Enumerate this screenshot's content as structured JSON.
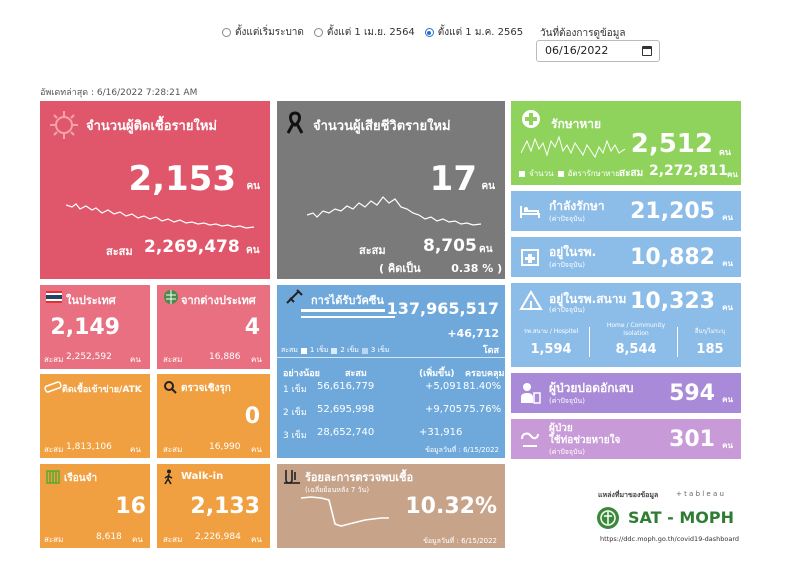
{
  "filters": {
    "options": [
      {
        "label": "ตั้งแต่เริ่มระบาด",
        "selected": false
      },
      {
        "label": "ตั้งแต่ 1 เม.ย. 2564",
        "selected": false
      },
      {
        "label": "ตั้งแต่ 1 ม.ค. 2565",
        "selected": true
      }
    ],
    "date_label": "วันที่ต้องการดูข้อมูล",
    "date_value": "06/16/2022"
  },
  "updated": "อัพเดทล่าสุด : 6/16/2022 7:28:21 AM",
  "unit": "คน",
  "cum_label": "สะสม",
  "new_cases": {
    "title": "จำนวนผู้ติดเชื้อรายใหม่",
    "value": "2,153",
    "cum": "2,269,478"
  },
  "deaths": {
    "title": "จำนวนผู้เสียชีวิตรายใหม่",
    "value": "17",
    "cum": "8,705",
    "pct": "( คิดเป็น        0.38 % )"
  },
  "recovered": {
    "title": "รักษาหาย",
    "value": "2,512",
    "cum": "2,272,811",
    "legend_a": "จำนวน",
    "legend_b": "อัตรารักษาหาย"
  },
  "treating": {
    "title": "กำลังรักษา",
    "sub": "(ค่าปัจจุบัน)",
    "value": "21,205"
  },
  "hospital": {
    "title": "อยู่ในรพ.",
    "sub": "(ค่าปัจจุบัน)",
    "value": "10,882"
  },
  "field_hospital": {
    "title": "อยู่ในรพ.สนาม",
    "sub": "(ค่าปัจจุบัน)",
    "value": "10,323",
    "cols": [
      {
        "label": "รพ.สนาม / Hospitel",
        "value": "1,594"
      },
      {
        "label": "Home / Community Isolation",
        "value": "8,544"
      },
      {
        "label": "อื่นๆ/ไม่ระบุ",
        "value": "185"
      }
    ]
  },
  "pneumonia": {
    "title": "ผู้ป่วยปอดอักเสบ",
    "sub": "(ค่าปัจจุบัน)",
    "value": "594"
  },
  "ventilator": {
    "title1": "ผู้ป่วย",
    "title2": "ใช้ท่อช่วยหายใจ",
    "sub": "(ค่าปัจจุบัน)",
    "value": "301"
  },
  "domestic": {
    "title": "ในประเทศ",
    "value": "2,149",
    "cum": "2,252,592"
  },
  "abroad": {
    "title": "จากต่างประเทศ",
    "value": "4",
    "cum": "16,886"
  },
  "atk": {
    "title": "ติดเชื้อเข้าข่าย/ATK",
    "cum": "1,813,106"
  },
  "proactive": {
    "title": "ตรวจเชิงรุก",
    "value": "0",
    "cum": "16,990"
  },
  "prison": {
    "title": "เรือนจำ",
    "value": "16",
    "cum": "8,618"
  },
  "walkin": {
    "title": "Walk-in",
    "value": "2,133",
    "cum": "2,226,984"
  },
  "vaccine": {
    "title": "การได้รับวัคซีน",
    "total": "137,965,517",
    "delta": "+46,712",
    "dose_unit": "โดส",
    "legend_prefix": "สะสม",
    "legend": [
      "1 เข็ม",
      "2 เข็ม",
      "3 เข็ม"
    ],
    "headers": [
      "อย่างน้อย",
      "สะสม",
      "(เพิ่มขึ้น)",
      "ครอบคลุม"
    ],
    "rows": [
      {
        "dose": "1 เข็ม",
        "cum": "56,616,779",
        "inc": "+5,091",
        "cov": "81.40%"
      },
      {
        "dose": "2 เข็ม",
        "cum": "52,695,998",
        "inc": "+9,705",
        "cov": "75.76%"
      },
      {
        "dose": "3 เข็ม",
        "cum": "28,652,740",
        "inc": "+31,916",
        "cov": ""
      }
    ],
    "asof": "ข้อมูลวันที่ : 6/15/2022"
  },
  "positivity": {
    "title": "ร้อยละการตรวจพบเชื้อ",
    "sub": "(เฉลี่ยย้อนหลัง 7 วัน)",
    "value": "10.32%",
    "asof": "ข้อมูลวันที่ : 6/15/2022"
  },
  "source": {
    "label": "แหล่งที่มาของข้อมูล",
    "tableau": "+ t a b l e a u",
    "logo": "SAT - MOPH",
    "url": "https://ddc.moph.go.th/covid19-dashboard"
  },
  "colors": {
    "red": "#e0566a",
    "gray": "#7a7a7a",
    "green": "#8fd35c",
    "blue": "#6fa9dc",
    "lightblue": "#8cbce8",
    "purple": "#a98ad8",
    "pink": "#c89bd8",
    "orange": "#f0a040",
    "tan": "#c7a38a"
  }
}
